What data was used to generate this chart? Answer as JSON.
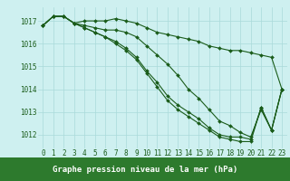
{
  "x": [
    0,
    1,
    2,
    3,
    4,
    5,
    6,
    7,
    8,
    9,
    10,
    11,
    12,
    13,
    14,
    15,
    16,
    17,
    18,
    19,
    20,
    21,
    22,
    23
  ],
  "series": [
    [
      1016.8,
      1017.2,
      1017.2,
      1016.9,
      1017.0,
      1017.0,
      1017.0,
      1017.1,
      1017.0,
      1016.9,
      1016.7,
      1016.5,
      1016.4,
      1016.3,
      1016.2,
      1016.1,
      1015.9,
      1015.8,
      1015.7,
      1015.7,
      1015.6,
      1015.5,
      1015.4,
      1014.0
    ],
    [
      1016.8,
      1017.2,
      1017.2,
      1016.9,
      1016.8,
      1016.7,
      1016.6,
      1016.6,
      1016.5,
      1016.3,
      1015.9,
      1015.5,
      1015.1,
      1014.6,
      1014.0,
      1013.6,
      1013.1,
      1012.6,
      1012.4,
      1012.1,
      1011.9,
      1013.1,
      1012.2,
      1014.0
    ],
    [
      1016.8,
      1017.2,
      1017.2,
      1016.9,
      1016.7,
      1016.5,
      1016.3,
      1016.1,
      1015.8,
      1015.4,
      1014.8,
      1014.3,
      1013.7,
      1013.3,
      1013.0,
      1012.7,
      1012.3,
      1012.0,
      1011.9,
      1011.9,
      1011.8,
      1013.2,
      1012.2,
      1014.0
    ],
    [
      1016.8,
      1017.2,
      1017.2,
      1016.9,
      1016.7,
      1016.5,
      1016.3,
      1016.0,
      1015.7,
      1015.3,
      1014.7,
      1014.1,
      1013.5,
      1013.1,
      1012.8,
      1012.5,
      1012.2,
      1011.9,
      1011.8,
      1011.7,
      1011.7,
      1013.2,
      1012.2,
      1014.0
    ]
  ],
  "line_color": "#1a5c1a",
  "marker": "D",
  "markersize": 2.0,
  "linewidth": 0.8,
  "bg_color": "#cef0f0",
  "grid_color": "#aadada",
  "xlabel": "Graphe pression niveau de la mer (hPa)",
  "ylabel_ticks": [
    1012,
    1013,
    1014,
    1015,
    1016,
    1017
  ],
  "xlim_min": -0.5,
  "xlim_max": 23.5,
  "ylim_min": 1011.4,
  "ylim_max": 1017.6,
  "tick_fontsize": 5.5,
  "label_fontsize": 6.5,
  "text_color": "#1a5c1a",
  "label_bg": "#2d7a2d",
  "label_text_color": "#ffffff"
}
